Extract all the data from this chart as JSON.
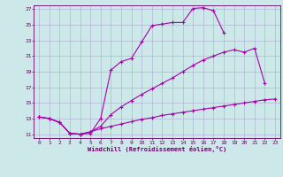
{
  "xlabel": "Windchill (Refroidissement éolien,°C)",
  "background_color": "#cce8e8",
  "grid_color": "#aaaacc",
  "line_color": "#aa00aa",
  "xlim": [
    -0.5,
    23.5
  ],
  "ylim": [
    10.5,
    27.5
  ],
  "xticks": [
    0,
    1,
    2,
    3,
    4,
    5,
    6,
    7,
    8,
    9,
    10,
    11,
    12,
    13,
    14,
    15,
    16,
    17,
    18,
    19,
    20,
    21,
    22,
    23
  ],
  "yticks": [
    11,
    13,
    15,
    17,
    19,
    21,
    23,
    25,
    27
  ],
  "curve1_x": [
    0,
    1,
    2,
    3,
    4,
    5,
    6,
    7,
    8,
    9,
    10,
    11,
    12,
    13,
    14,
    15,
    16,
    17,
    18
  ],
  "curve1_y": [
    13.2,
    13.0,
    12.5,
    11.1,
    11.0,
    11.1,
    13.0,
    19.2,
    20.3,
    20.7,
    22.8,
    24.9,
    25.1,
    25.3,
    25.3,
    27.1,
    27.2,
    26.8,
    24.0
  ],
  "curve2_x": [
    0,
    1,
    2,
    3,
    4,
    5,
    6,
    7,
    8,
    9,
    10,
    11,
    12,
    13,
    14,
    15,
    16,
    17,
    18,
    19,
    20,
    21,
    22
  ],
  "curve2_y": [
    13.2,
    13.0,
    12.5,
    11.1,
    11.0,
    11.3,
    12.0,
    13.5,
    14.5,
    15.3,
    16.1,
    16.8,
    17.5,
    18.2,
    19.0,
    19.8,
    20.5,
    21.0,
    21.5,
    21.8,
    21.5,
    22.0,
    17.5
  ],
  "curve3_x": [
    0,
    1,
    2,
    3,
    4,
    5,
    6,
    7,
    8,
    9,
    10,
    11,
    12,
    13,
    14,
    15,
    16,
    17,
    18,
    19,
    20,
    21,
    22,
    23
  ],
  "curve3_y": [
    13.2,
    13.0,
    12.5,
    11.1,
    11.0,
    11.3,
    11.7,
    12.0,
    12.3,
    12.6,
    12.9,
    13.1,
    13.4,
    13.6,
    13.8,
    14.0,
    14.2,
    14.4,
    14.6,
    14.8,
    15.0,
    15.2,
    15.4,
    15.5
  ]
}
